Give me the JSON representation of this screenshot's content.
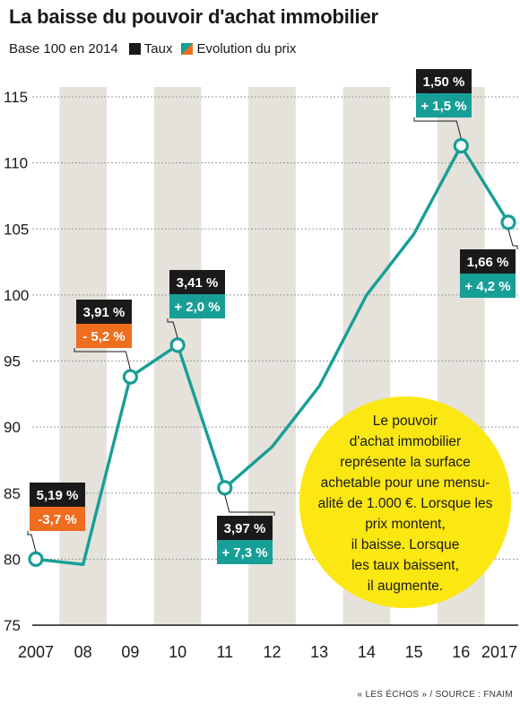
{
  "header": {
    "title": "La baisse du pouvoir d'achat immobilier",
    "subtitle": "Base 100 en 2014",
    "legend_taux": "Taux",
    "legend_prix": "Evolution du prix"
  },
  "chart_data": {
    "type": "line",
    "title": "La baisse du pouvoir d'achat immobilier",
    "subtitle": "Base 100 en 2014",
    "x": [
      "2007",
      "08",
      "09",
      "10",
      "11",
      "12",
      "13",
      "14",
      "15",
      "16",
      "2017"
    ],
    "series": [
      {
        "name": "",
        "values": [
          80,
          79.6,
          93.8,
          96.2,
          85.4,
          88.5,
          93.1,
          100,
          104.6,
          111.3,
          105.5
        ]
      }
    ],
    "ylim": [
      75,
      115
    ],
    "yticks": [
      75,
      80,
      85,
      90,
      95,
      100,
      105,
      110,
      115
    ],
    "grid": true,
    "legend": [
      {
        "label": "Taux",
        "color": "#1a1a1a"
      },
      {
        "label": "Evolution du prix",
        "colors": [
          "#179e96",
          "#ef6d1f"
        ]
      }
    ],
    "annotations": [
      {
        "x_index": 0,
        "taux": "5,19 %",
        "prix": "-3,7 %",
        "prix_color": "#ef6d1f"
      },
      {
        "x_index": 2,
        "taux": "3,91 %",
        "prix": "- 5,2 %",
        "prix_color": "#ef6d1f"
      },
      {
        "x_index": 3,
        "taux": "3,41 %",
        "prix": "+ 2,0 %",
        "prix_color": "#179e96"
      },
      {
        "x_index": 4,
        "taux": "3,97 %",
        "prix": "+ 7,3 %",
        "prix_color": "#179e96"
      },
      {
        "x_index": 9,
        "taux": "1,50 %",
        "prix": "+ 1,5 %",
        "prix_color": "#179e96"
      },
      {
        "x_index": 10,
        "taux": "1,66 %",
        "prix": "+ 4,2 %",
        "prix_color": "#179e96"
      }
    ],
    "note": [
      "Le pouvoir",
      "d'achat immobilier",
      "représente la surface",
      "achetable pour une mensu-",
      "alité de 1.000 €. Lorsque les",
      "prix montent,",
      "il baisse. Lorsque",
      "les taux baissent,",
      "il augmente."
    ],
    "colors": {
      "line": "#179e96",
      "band": "#e4e2db",
      "note_bg": "#fbe712",
      "dark": "#1a1a1a"
    }
  },
  "source": "« LES ÉCHOS » / SOURCE : FNAIM"
}
